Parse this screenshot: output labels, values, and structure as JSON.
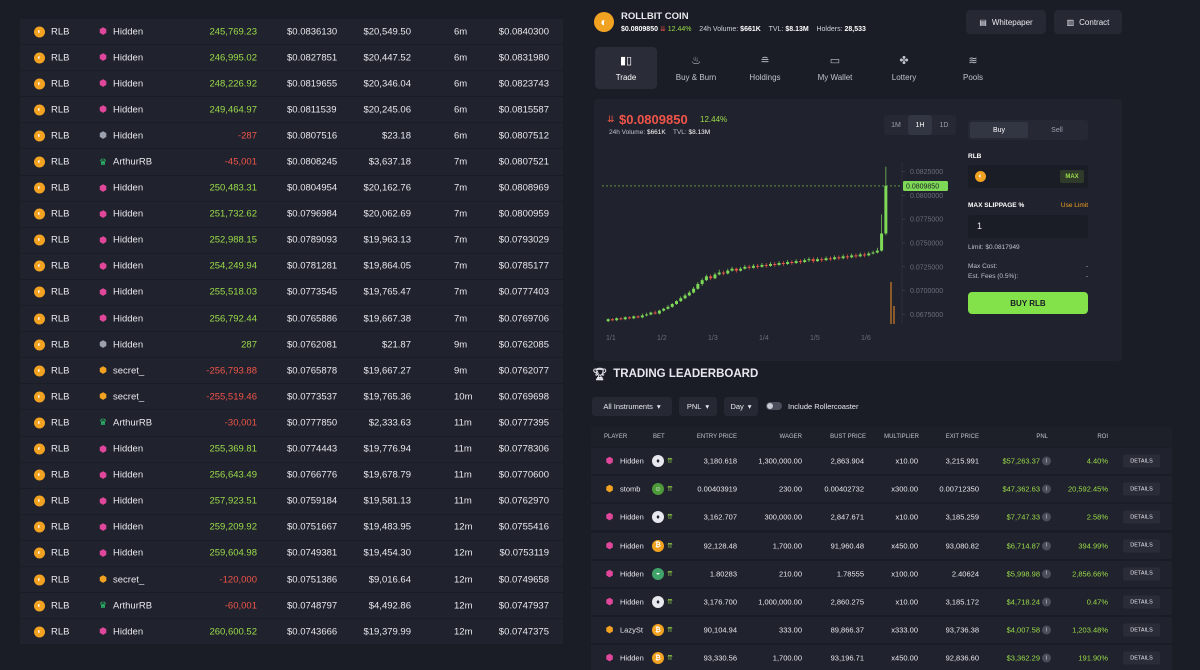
{
  "trades": [
    {
      "token": "RLB",
      "avatar": "hidden",
      "user": "Hidden",
      "amount": "245,769.23",
      "sign": "pos",
      "price": "$0.0836130",
      "value": "$20,549.50",
      "time": "6m",
      "last": "$0.0840300"
    },
    {
      "token": "RLB",
      "avatar": "hidden",
      "user": "Hidden",
      "amount": "246,995.02",
      "sign": "pos",
      "price": "$0.0827851",
      "value": "$20,447.52",
      "time": "6m",
      "last": "$0.0831980"
    },
    {
      "token": "RLB",
      "avatar": "hidden",
      "user": "Hidden",
      "amount": "248,226.92",
      "sign": "pos",
      "price": "$0.0819655",
      "value": "$20,346.04",
      "time": "6m",
      "last": "$0.0823743"
    },
    {
      "token": "RLB",
      "avatar": "hidden",
      "user": "Hidden",
      "amount": "249,464.97",
      "sign": "pos",
      "price": "$0.0811539",
      "value": "$20,245.06",
      "time": "6m",
      "last": "$0.0815587"
    },
    {
      "token": "RLB",
      "avatar": "shield",
      "user": "Hidden",
      "amount": "-287",
      "sign": "neg",
      "price": "$0.0807516",
      "value": "$23.18",
      "time": "6m",
      "last": "$0.0807512"
    },
    {
      "token": "RLB",
      "avatar": "arthur",
      "user": "ArthurRB",
      "amount": "-45,001",
      "sign": "neg",
      "price": "$0.0808245",
      "value": "$3,637.18",
      "time": "7m",
      "last": "$0.0807521"
    },
    {
      "token": "RLB",
      "avatar": "hidden",
      "user": "Hidden",
      "amount": "250,483.31",
      "sign": "pos",
      "price": "$0.0804954",
      "value": "$20,162.76",
      "time": "7m",
      "last": "$0.0808969"
    },
    {
      "token": "RLB",
      "avatar": "hidden",
      "user": "Hidden",
      "amount": "251,732.62",
      "sign": "pos",
      "price": "$0.0796984",
      "value": "$20,062.69",
      "time": "7m",
      "last": "$0.0800959"
    },
    {
      "token": "RLB",
      "avatar": "hidden",
      "user": "Hidden",
      "amount": "252,988.15",
      "sign": "pos",
      "price": "$0.0789093",
      "value": "$19,963.13",
      "time": "7m",
      "last": "$0.0793029"
    },
    {
      "token": "RLB",
      "avatar": "hidden",
      "user": "Hidden",
      "amount": "254,249.94",
      "sign": "pos",
      "price": "$0.0781281",
      "value": "$19,864.05",
      "time": "7m",
      "last": "$0.0785177"
    },
    {
      "token": "RLB",
      "avatar": "hidden",
      "user": "Hidden",
      "amount": "255,518.03",
      "sign": "pos",
      "price": "$0.0773545",
      "value": "$19,765.47",
      "time": "7m",
      "last": "$0.0777403"
    },
    {
      "token": "RLB",
      "avatar": "hidden",
      "user": "Hidden",
      "amount": "256,792.44",
      "sign": "pos",
      "price": "$0.0765886",
      "value": "$19,667.38",
      "time": "7m",
      "last": "$0.0769706"
    },
    {
      "token": "RLB",
      "avatar": "shield",
      "user": "Hidden",
      "amount": "287",
      "sign": "pos",
      "price": "$0.0762081",
      "value": "$21.87",
      "time": "9m",
      "last": "$0.0762085"
    },
    {
      "token": "RLB",
      "avatar": "secret",
      "user": "secret_",
      "amount": "-256,793.88",
      "sign": "neg",
      "price": "$0.0765878",
      "value": "$19,667.27",
      "time": "9m",
      "last": "$0.0762077"
    },
    {
      "token": "RLB",
      "avatar": "secret",
      "user": "secret_",
      "amount": "-255,519.46",
      "sign": "neg",
      "price": "$0.0773537",
      "value": "$19,765.36",
      "time": "10m",
      "last": "$0.0769698"
    },
    {
      "token": "RLB",
      "avatar": "arthur",
      "user": "ArthurRB",
      "amount": "-30,001",
      "sign": "neg",
      "price": "$0.0777850",
      "value": "$2,333.63",
      "time": "11m",
      "last": "$0.0777395"
    },
    {
      "token": "RLB",
      "avatar": "hidden",
      "user": "Hidden",
      "amount": "255,369.81",
      "sign": "pos",
      "price": "$0.0774443",
      "value": "$19,776.94",
      "time": "11m",
      "last": "$0.0778306"
    },
    {
      "token": "RLB",
      "avatar": "hidden",
      "user": "Hidden",
      "amount": "256,643.49",
      "sign": "pos",
      "price": "$0.0766776",
      "value": "$19,678.79",
      "time": "11m",
      "last": "$0.0770600"
    },
    {
      "token": "RLB",
      "avatar": "hidden",
      "user": "Hidden",
      "amount": "257,923.51",
      "sign": "pos",
      "price": "$0.0759184",
      "value": "$19,581.13",
      "time": "11m",
      "last": "$0.0762970"
    },
    {
      "token": "RLB",
      "avatar": "hidden",
      "user": "Hidden",
      "amount": "259,209.92",
      "sign": "pos",
      "price": "$0.0751667",
      "value": "$19,483.95",
      "time": "12m",
      "last": "$0.0755416"
    },
    {
      "token": "RLB",
      "avatar": "hidden",
      "user": "Hidden",
      "amount": "259,604.98",
      "sign": "pos",
      "price": "$0.0749381",
      "value": "$19,454.30",
      "time": "12m",
      "last": "$0.0753119"
    },
    {
      "token": "RLB",
      "avatar": "secret",
      "user": "secret_",
      "amount": "-120,000",
      "sign": "neg",
      "price": "$0.0751386",
      "value": "$9,016.64",
      "time": "12m",
      "last": "$0.0749658"
    },
    {
      "token": "RLB",
      "avatar": "arthur",
      "user": "ArthurRB",
      "amount": "-60,001",
      "sign": "neg",
      "price": "$0.0748797",
      "value": "$4,492.86",
      "time": "12m",
      "last": "$0.0747937"
    },
    {
      "token": "RLB",
      "avatar": "hidden",
      "user": "Hidden",
      "amount": "260,600.52",
      "sign": "pos",
      "price": "$0.0743666",
      "value": "$19,379.99",
      "time": "12m",
      "last": "$0.0747375"
    }
  ],
  "header": {
    "coin_name": "ROLLBIT COIN",
    "price": "$0.0809850",
    "change": "12.44%",
    "volume_label": "24h Volume:",
    "volume": "$661K",
    "tvl_label": "TVL:",
    "tvl": "$8.13M",
    "holders_label": "Holders:",
    "holders": "28,533",
    "whitepaper": "Whitepaper",
    "contract": "Contract"
  },
  "tabs": [
    "Trade",
    "Buy & Burn",
    "Holdings",
    "My Wallet",
    "Lottery",
    "Pools"
  ],
  "chart_panel": {
    "price": "$0.0809850",
    "change": "12.44%",
    "volume_label": "24h Volume:",
    "volume": "$661K",
    "tvl_label": "TVL:",
    "tvl": "$8.13M",
    "timeframes": [
      "1M",
      "1H",
      "1D"
    ],
    "active_timeframe": "1H"
  },
  "chart_data": {
    "type": "candlestick",
    "x_ticks": [
      "1/1",
      "1/2",
      "1/3",
      "1/4",
      "1/5",
      "1/6"
    ],
    "y_ticks": [
      "0.0825000",
      "0.0800000",
      "0.0775000",
      "0.0750000",
      "0.0725000",
      "0.0700000",
      "0.0675000"
    ],
    "ylim": [
      0.0665,
      0.0835
    ],
    "current_price_label": "0.0809850",
    "current_price": 0.080985,
    "candles": [
      [
        0.0668,
        0.067,
        0.0667,
        0.0671
      ],
      [
        0.067,
        0.0669,
        0.0668,
        0.0671
      ],
      [
        0.0669,
        0.0671,
        0.0668,
        0.0672
      ],
      [
        0.0671,
        0.067,
        0.0669,
        0.0672
      ],
      [
        0.067,
        0.0672,
        0.0669,
        0.0673
      ],
      [
        0.0672,
        0.0671,
        0.067,
        0.0673
      ],
      [
        0.0671,
        0.0673,
        0.067,
        0.0674
      ],
      [
        0.0673,
        0.0672,
        0.0671,
        0.0674
      ],
      [
        0.0672,
        0.0674,
        0.0671,
        0.0676
      ],
      [
        0.0674,
        0.0675,
        0.0673,
        0.0677
      ],
      [
        0.0675,
        0.0677,
        0.0674,
        0.0678
      ],
      [
        0.0677,
        0.0676,
        0.0675,
        0.0679
      ],
      [
        0.0676,
        0.0679,
        0.0675,
        0.068
      ],
      [
        0.0679,
        0.0681,
        0.0678,
        0.0682
      ],
      [
        0.0681,
        0.0683,
        0.068,
        0.0685
      ],
      [
        0.0683,
        0.0686,
        0.0682,
        0.0687
      ],
      [
        0.0686,
        0.0689,
        0.0685,
        0.069
      ],
      [
        0.0689,
        0.0692,
        0.0688,
        0.0694
      ],
      [
        0.0692,
        0.0695,
        0.0691,
        0.0697
      ],
      [
        0.0695,
        0.0698,
        0.0694,
        0.07
      ],
      [
        0.0698,
        0.0702,
        0.0697,
        0.0704
      ],
      [
        0.0702,
        0.0707,
        0.0701,
        0.0709
      ],
      [
        0.0707,
        0.0711,
        0.0705,
        0.0713
      ],
      [
        0.0711,
        0.0715,
        0.071,
        0.0717
      ],
      [
        0.0715,
        0.0713,
        0.0711,
        0.0717
      ],
      [
        0.0713,
        0.0717,
        0.0712,
        0.0719
      ],
      [
        0.0717,
        0.0719,
        0.0716,
        0.0722
      ],
      [
        0.0719,
        0.0718,
        0.0716,
        0.0721
      ],
      [
        0.0718,
        0.0721,
        0.0717,
        0.0723
      ],
      [
        0.0721,
        0.0723,
        0.072,
        0.0725
      ],
      [
        0.0723,
        0.0721,
        0.0719,
        0.0724
      ],
      [
        0.0721,
        0.0723,
        0.072,
        0.0725
      ],
      [
        0.0723,
        0.0725,
        0.0722,
        0.0727
      ],
      [
        0.0725,
        0.0724,
        0.0722,
        0.0727
      ],
      [
        0.0724,
        0.0726,
        0.0723,
        0.0728
      ],
      [
        0.0726,
        0.0725,
        0.0723,
        0.0728
      ],
      [
        0.0725,
        0.0727,
        0.0724,
        0.0729
      ],
      [
        0.0727,
        0.0726,
        0.0724,
        0.0729
      ],
      [
        0.0726,
        0.0728,
        0.0725,
        0.073
      ],
      [
        0.0728,
        0.0727,
        0.0725,
        0.073
      ],
      [
        0.0727,
        0.0729,
        0.0726,
        0.0731
      ],
      [
        0.0729,
        0.0728,
        0.0726,
        0.0731
      ],
      [
        0.0728,
        0.073,
        0.0727,
        0.0732
      ],
      [
        0.073,
        0.0729,
        0.0727,
        0.0732
      ],
      [
        0.0729,
        0.0731,
        0.0728,
        0.0733
      ],
      [
        0.0731,
        0.073,
        0.0728,
        0.0733
      ],
      [
        0.073,
        0.0732,
        0.0729,
        0.0734
      ],
      [
        0.0732,
        0.0733,
        0.073,
        0.0735
      ],
      [
        0.0733,
        0.0731,
        0.0729,
        0.0735
      ],
      [
        0.0731,
        0.0733,
        0.073,
        0.0735
      ],
      [
        0.0733,
        0.0732,
        0.073,
        0.0735
      ],
      [
        0.0732,
        0.0734,
        0.0731,
        0.0736
      ],
      [
        0.0734,
        0.0733,
        0.0731,
        0.0736
      ],
      [
        0.0733,
        0.0735,
        0.0732,
        0.0737
      ],
      [
        0.0735,
        0.0734,
        0.0732,
        0.0737
      ],
      [
        0.0734,
        0.0736,
        0.0733,
        0.0738
      ],
      [
        0.0736,
        0.0735,
        0.0733,
        0.0738
      ],
      [
        0.0735,
        0.0737,
        0.0734,
        0.0739
      ],
      [
        0.0737,
        0.0736,
        0.0734,
        0.0739
      ],
      [
        0.0736,
        0.0738,
        0.0735,
        0.074
      ],
      [
        0.0738,
        0.0737,
        0.0735,
        0.074
      ],
      [
        0.0737,
        0.0739,
        0.0736,
        0.0741
      ],
      [
        0.0739,
        0.074,
        0.0738,
        0.0742
      ],
      [
        0.074,
        0.0742,
        0.0739,
        0.0745
      ],
      [
        0.0742,
        0.076,
        0.0741,
        0.078
      ],
      [
        0.076,
        0.081,
        0.0758,
        0.083
      ]
    ]
  },
  "order": {
    "buy": "Buy",
    "sell": "Sell",
    "token_label": "RLB",
    "max": "MAX",
    "slippage_label": "MAX SLIPPAGE %",
    "use_limit": "Use Limit",
    "slippage_value": "1",
    "limit": "Limit: $0.0817949",
    "max_cost_label": "Max Cost:",
    "max_cost": "-",
    "fees_label": "Est. Fees (0.5%):",
    "fees": "-",
    "buy_button": "BUY RLB"
  },
  "leaderboard": {
    "title": "TRADING LEADERBOARD",
    "filters": {
      "instruments": "All Instruments",
      "metric": "PNL",
      "period": "Day",
      "toggle_label": "Include Rollercoaster"
    },
    "columns": [
      "PLAYER",
      "BET",
      "ENTRY PRICE",
      "WAGER",
      "BUST PRICE",
      "MULTIPLIER",
      "EXIT PRICE",
      "PNL",
      "ROI"
    ],
    "details": "DETAILS",
    "rows": [
      {
        "avatar": "hidden",
        "name": "Hidden",
        "bet": "eth",
        "entry": "3,180.618",
        "wager": "1,300,000.00",
        "bust": "2,863.904",
        "mult": "x10.00",
        "exit": "3,215.991",
        "pnl": "$57,263.37",
        "roi": "4.40%"
      },
      {
        "avatar": "secret",
        "name": "stomb",
        "bet": "pepe",
        "entry": "0.00403919",
        "wager": "230.00",
        "bust": "0.00402732",
        "mult": "x300.00",
        "exit": "0.00712350",
        "pnl": "$47,362.63",
        "roi": "20,592.45%"
      },
      {
        "avatar": "hidden",
        "name": "Hidden",
        "bet": "eth",
        "entry": "3,162.707",
        "wager": "300,000.00",
        "bust": "2,847.671",
        "mult": "x10.00",
        "exit": "3,185.259",
        "pnl": "$7,747.33",
        "roi": "2.58%"
      },
      {
        "avatar": "hidden",
        "name": "Hidden",
        "bet": "btc",
        "entry": "92,128.48",
        "wager": "1,700.00",
        "bust": "91,960.48",
        "mult": "x450.00",
        "exit": "93,080.82",
        "pnl": "$6,714.87",
        "roi": "394.99%"
      },
      {
        "avatar": "hidden",
        "name": "Hidden",
        "bet": "sol",
        "entry": "1.80283",
        "wager": "210.00",
        "bust": "1.78555",
        "mult": "x100.00",
        "exit": "2.40624",
        "pnl": "$5,998.98",
        "roi": "2,856.66%"
      },
      {
        "avatar": "hidden",
        "name": "Hidden",
        "bet": "eth",
        "entry": "3,176.700",
        "wager": "1,000,000.00",
        "bust": "2,860.275",
        "mult": "x10.00",
        "exit": "3,185.172",
        "pnl": "$4,718.24",
        "roi": "0.47%"
      },
      {
        "avatar": "secret",
        "name": "LazySt",
        "bet": "btc",
        "entry": "90,104.94",
        "wager": "333.00",
        "bust": "89,866.37",
        "mult": "x333.00",
        "exit": "93,736.38",
        "pnl": "$4,007.58",
        "roi": "1,203.48%"
      },
      {
        "avatar": "hidden",
        "name": "Hidden",
        "bet": "btc",
        "entry": "93,330.56",
        "wager": "1,700.00",
        "bust": "93,196.71",
        "mult": "x450.00",
        "exit": "92,836.60",
        "pnl": "$3,362.29",
        "roi": "191.90%"
      }
    ]
  }
}
